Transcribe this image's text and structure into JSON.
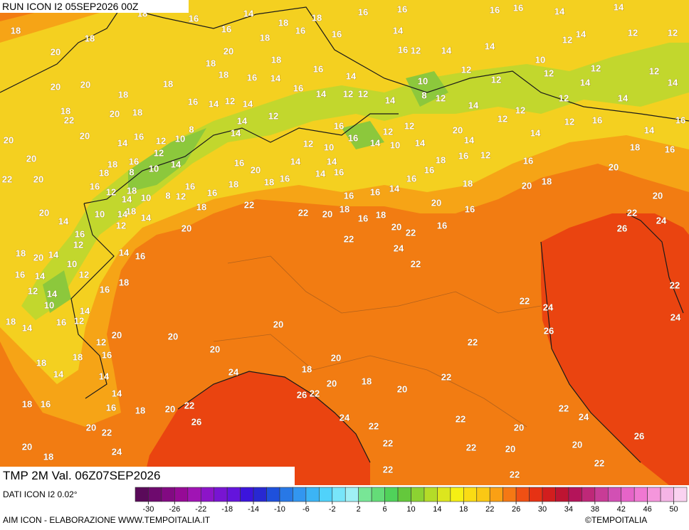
{
  "header": {
    "run": "RUN ICON I2 05SEP2026 00Z",
    "validity": "TMP 2M Val. 06Z07SEP2026"
  },
  "footer": {
    "data": "DATI ICON I2 0.02°",
    "credit": "AIM ICON - ELABORAZIONE WWW.TEMPOITALIA.IT",
    "copyright": "©TEMPOITALIA"
  },
  "map": {
    "labels": [
      18,
      20,
      18,
      18,
      16,
      16,
      14,
      18,
      18,
      16,
      18,
      16,
      16,
      16,
      14,
      16,
      12,
      14,
      16,
      16,
      14,
      14,
      14,
      12,
      12,
      12,
      14,
      10,
      12,
      12,
      12,
      14,
      14,
      12,
      14,
      16,
      14,
      16,
      18,
      16,
      12,
      14,
      12,
      12,
      12,
      12,
      10,
      8,
      12,
      14,
      20,
      14,
      12,
      16,
      18,
      20,
      20,
      20,
      22,
      24,
      26,
      22,
      24,
      24,
      26,
      22,
      22,
      22,
      22,
      20,
      20,
      22,
      22,
      22,
      22,
      24,
      20,
      18,
      20,
      22,
      26,
      18,
      20,
      20,
      20,
      20,
      24,
      22,
      26,
      20,
      18,
      14,
      16,
      14,
      16,
      12,
      20,
      18,
      14,
      18,
      18,
      16,
      20,
      22,
      20,
      18,
      24,
      22,
      24,
      26,
      20,
      22,
      22,
      12,
      16,
      14,
      18,
      14,
      10,
      12,
      14,
      16,
      18,
      12,
      10,
      14,
      20,
      18,
      16,
      14,
      14,
      16,
      12,
      16,
      14,
      20,
      22,
      20,
      20,
      20,
      18,
      22,
      20,
      20,
      18,
      18,
      20,
      20,
      18,
      18,
      20,
      18,
      16,
      14,
      18,
      16,
      14,
      12,
      12,
      14,
      16,
      14,
      12,
      14,
      16,
      12,
      14,
      14,
      8,
      10,
      12,
      16,
      14,
      12,
      16,
      18,
      8,
      18,
      10,
      14,
      16,
      12,
      18,
      10,
      14,
      8,
      12,
      16,
      16,
      18,
      10,
      14,
      18,
      14,
      12,
      20,
      16,
      20,
      18,
      16,
      18,
      22,
      14,
      12,
      10,
      16,
      14,
      14,
      16,
      16,
      14,
      12,
      12,
      10,
      14,
      14,
      18,
      16,
      16,
      18,
      14,
      16,
      16,
      16,
      22,
      20,
      18,
      16,
      18,
      20,
      22,
      20,
      16,
      16,
      22,
      24,
      22
    ]
  },
  "colorbar": {
    "range": [
      -32,
      52
    ],
    "ticks": [
      -30,
      -26,
      -22,
      -18,
      -14,
      -10,
      -6,
      -2,
      2,
      6,
      10,
      14,
      18,
      22,
      26,
      30,
      34,
      38,
      42,
      46,
      50
    ],
    "colors": [
      "#5a0a5a",
      "#6e0a6e",
      "#820a82",
      "#960a96",
      "#a014b4",
      "#8c14c8",
      "#7814d2",
      "#6414dc",
      "#3c14dc",
      "#2828d2",
      "#1e50dc",
      "#2878e6",
      "#3296f0",
      "#3cb4f5",
      "#50d2fa",
      "#78e6fa",
      "#a0f0f5",
      "#78e696",
      "#64dc78",
      "#50d25a",
      "#64c83c",
      "#8cd232",
      "#b4dc28",
      "#dce61e",
      "#f5f014",
      "#fadc14",
      "#fac814",
      "#faa014",
      "#f57814",
      "#f05014",
      "#e63214",
      "#d21e1e",
      "#be1432",
      "#b4145a",
      "#be2878",
      "#c83c96",
      "#d250b4",
      "#e664c8",
      "#f078d2",
      "#f596dc",
      "#f5b4e6",
      "#fad2f0"
    ]
  }
}
